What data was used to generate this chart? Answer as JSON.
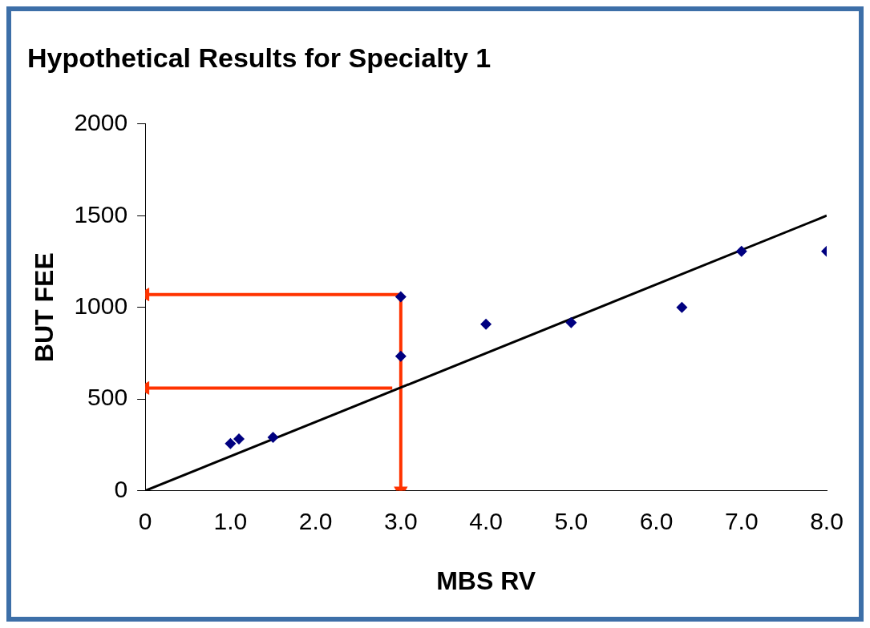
{
  "chart_data": {
    "type": "scatter",
    "title": "Hypothetical Results for Specialty 1",
    "xlabel": "MBS RV",
    "ylabel": "BUT FEE",
    "xlim": [
      0,
      8
    ],
    "ylim": [
      0,
      2000
    ],
    "xticks": [
      0,
      {
        "value": 1,
        "label": "1.0"
      },
      {
        "value": 2,
        "label": "2.0"
      },
      {
        "value": 3,
        "label": "3.0"
      },
      {
        "value": 4,
        "label": "4.0"
      },
      {
        "value": 5,
        "label": "5.0"
      },
      {
        "value": 6,
        "label": "6.0"
      },
      {
        "value": 7,
        "label": "7.0"
      },
      {
        "value": 8,
        "label": "8.0"
      }
    ],
    "yticks": [
      0,
      500,
      1000,
      1500,
      2000
    ],
    "grid": false,
    "legend": false,
    "marker": "diamond",
    "x": [
      1.0,
      1.1,
      1.5,
      3.0,
      3.0,
      4.0,
      5.0,
      6.3,
      7.0,
      8.0
    ],
    "series": [
      {
        "color": "#000080",
        "values": [
          257,
          282,
          291,
          1058,
          733,
          908,
          917,
          1000,
          1306,
          1306
        ]
      },
      {
        "type": "line",
        "color": "#000000",
        "x": [
          0,
          8
        ],
        "values": [
          0,
          1500
        ],
        "marker": "none"
      },
      {
        "type": "line",
        "color": "#ff3300",
        "x": [
          3,
          0
        ],
        "values": [
          1070,
          1070
        ],
        "marker": "triangle"
      },
      {
        "type": "line",
        "color": "#ff3300",
        "x": [
          2.9,
          0
        ],
        "values": [
          560,
          560
        ],
        "marker": "triangle"
      },
      {
        "type": "line",
        "color": "#ff3300",
        "x": [
          3,
          3
        ],
        "values": [
          1070,
          0
        ],
        "marker": "triangle"
      }
    ]
  }
}
